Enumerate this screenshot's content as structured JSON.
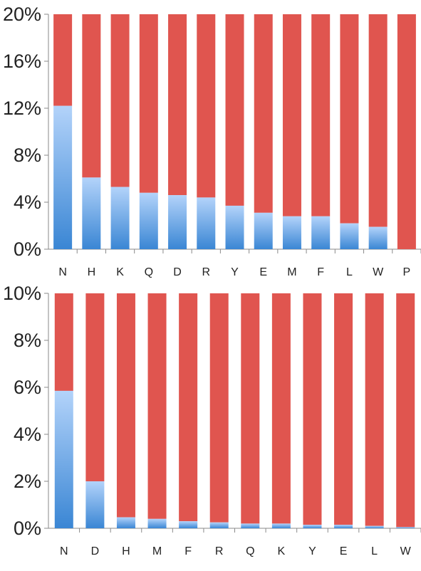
{
  "colors": {
    "highlight_top": "#b3d3fa",
    "highlight_bottom": "#3a86d4",
    "remainder": "#e0554f"
  },
  "chart_data": [
    {
      "type": "bar",
      "stacked": true,
      "categories": [
        "N",
        "H",
        "K",
        "Q",
        "D",
        "R",
        "Y",
        "E",
        "M",
        "F",
        "L",
        "W",
        "P"
      ],
      "values": [
        12.2,
        6.1,
        5.3,
        4.8,
        4.6,
        4.4,
        3.7,
        3.1,
        2.8,
        2.8,
        2.2,
        1.9,
        0
      ],
      "ylim": [
        0,
        20
      ],
      "yticks": [
        0,
        4,
        8,
        12,
        16,
        20
      ],
      "ytick_labels": [
        "0%",
        "4%",
        "8%",
        "12%",
        "16%",
        "20%"
      ],
      "grid": false,
      "legend": "none"
    },
    {
      "type": "bar",
      "stacked": true,
      "categories": [
        "N",
        "D",
        "H",
        "M",
        "F",
        "R",
        "Q",
        "K",
        "Y",
        "E",
        "L",
        "W"
      ],
      "values": [
        5.85,
        2.0,
        0.47,
        0.4,
        0.3,
        0.25,
        0.2,
        0.2,
        0.15,
        0.15,
        0.1,
        0.05
      ],
      "ylim": [
        0,
        10
      ],
      "yticks": [
        0,
        2,
        4,
        6,
        8,
        10
      ],
      "ytick_labels": [
        "0%",
        "2%",
        "4%",
        "6%",
        "8%",
        "10%"
      ],
      "grid": false,
      "legend": "none"
    }
  ]
}
